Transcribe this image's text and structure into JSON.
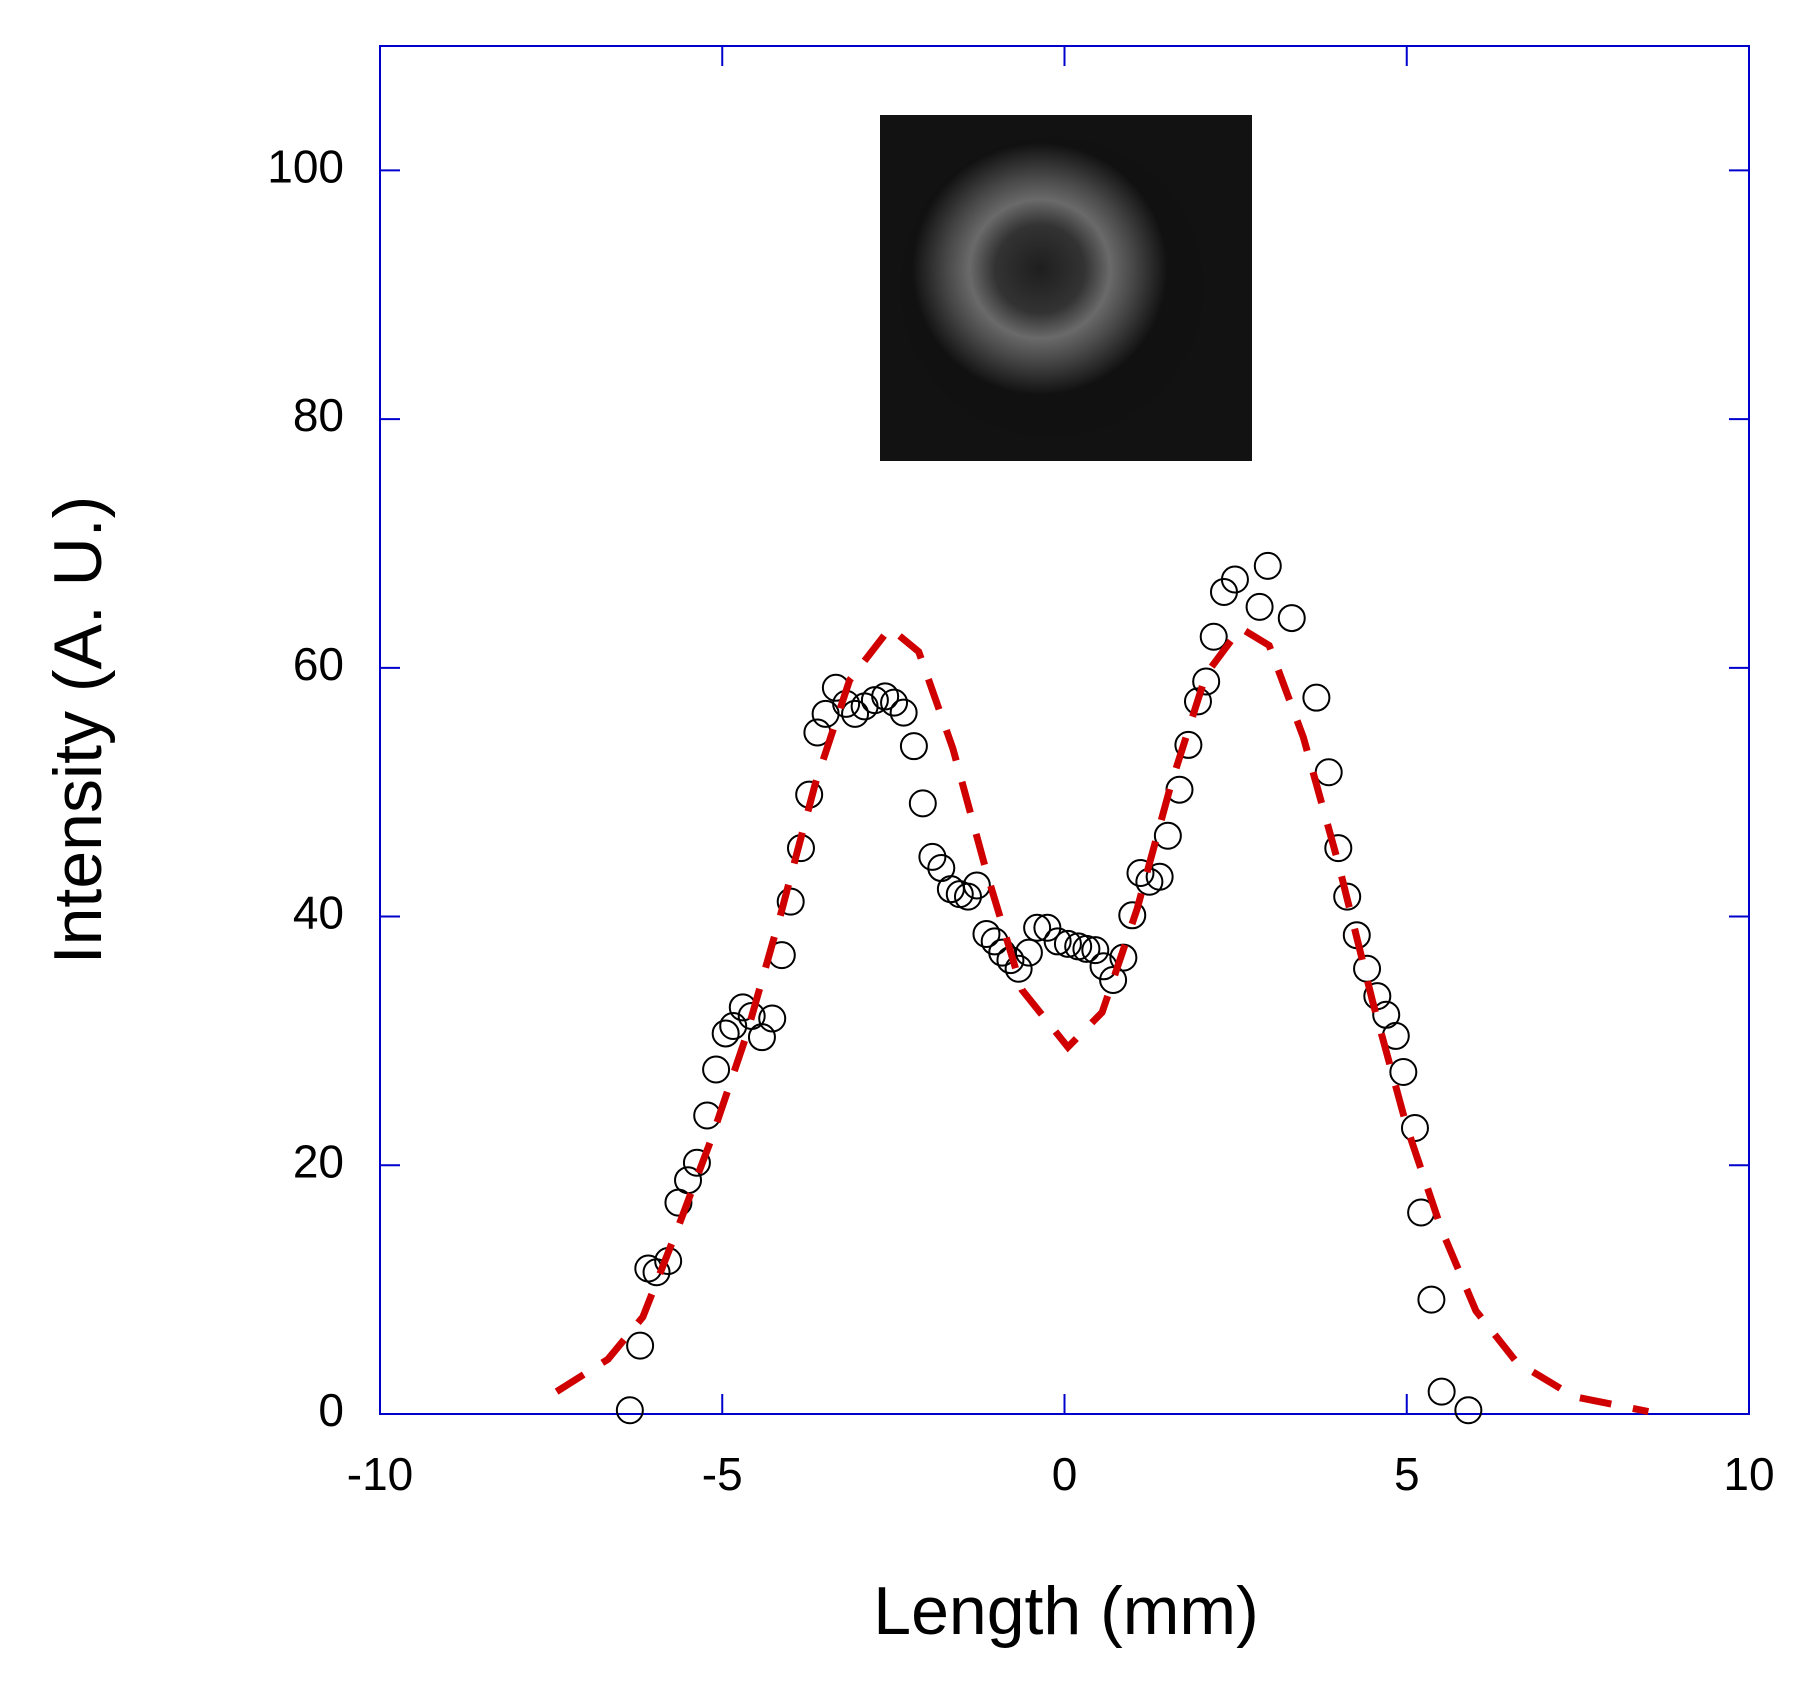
{
  "chart_data": {
    "type": "scatter",
    "x_label": "Length (mm)",
    "y_label": "Intensity (A. U.)",
    "xlim": [
      -10,
      10
    ],
    "ylim": [
      0,
      110
    ],
    "xticks": [
      -10,
      -5,
      0,
      5,
      10
    ],
    "yticks": [
      0,
      20,
      40,
      60,
      80,
      100
    ],
    "axis_color": "#0000cc",
    "series": [
      {
        "kind": "scatter",
        "marker": "open-circle",
        "color": "#000000",
        "x": [
          -6.35,
          -6.2,
          -6.08,
          -5.96,
          -5.79,
          -5.64,
          -5.5,
          -5.37,
          -5.22,
          -5.09,
          -4.95,
          -4.84,
          -4.7,
          -4.57,
          -4.42,
          -4.27,
          -4.13,
          -4.0,
          -3.85,
          -3.73,
          -3.61,
          -3.49,
          -3.34,
          -3.19,
          -3.06,
          -2.92,
          -2.77,
          -2.62,
          -2.49,
          -2.35,
          -2.2,
          -2.07,
          -1.93,
          -1.8,
          -1.66,
          -1.53,
          -1.41,
          -1.28,
          -1.14,
          -1.02,
          -0.91,
          -0.79,
          -0.67,
          -0.52,
          -0.4,
          -0.25,
          -0.1,
          0.05,
          0.2,
          0.32,
          0.45,
          0.57,
          0.71,
          0.86,
          0.99,
          1.11,
          1.24,
          1.39,
          1.51,
          1.68,
          1.81,
          1.95,
          2.07,
          2.18,
          2.33,
          2.49,
          2.85,
          2.97,
          3.32,
          3.68,
          3.86,
          4.0,
          4.13,
          4.27,
          4.42,
          4.57,
          4.7,
          4.84,
          4.95,
          5.12,
          5.21,
          5.36,
          5.51,
          5.9
        ],
        "values": [
          0.3,
          5.5,
          11.7,
          11.4,
          12.3,
          17,
          18.8,
          20.2,
          24,
          27.7,
          30.6,
          31.2,
          32.7,
          32,
          30.3,
          31.8,
          36.9,
          41.2,
          45.5,
          49.8,
          54.8,
          56.3,
          58.4,
          57.1,
          56.3,
          56.9,
          57.4,
          57.7,
          57.2,
          56.4,
          53.7,
          49.1,
          44.8,
          43.9,
          42.2,
          41.8,
          41.6,
          42.5,
          38.6,
          38,
          37.1,
          36.5,
          35.8,
          37.1,
          39.1,
          39.1,
          38,
          37.8,
          37.6,
          37.4,
          37.3,
          36,
          34.9,
          36.7,
          40.1,
          43.5,
          42.8,
          43.2,
          46.5,
          50.2,
          53.8,
          57.3,
          58.9,
          62.5,
          66.1,
          67.1,
          64.9,
          68.2,
          64,
          57.6,
          51.6,
          45.5,
          41.6,
          38.5,
          35.8,
          33.6,
          32.1,
          30.4,
          27.5,
          23,
          16.2,
          9.2,
          1.8,
          0.3
        ]
      },
      {
        "kind": "line",
        "style": "dashed",
        "color": "#d00000",
        "x": [
          -7.42,
          -6.67,
          -6.16,
          -5.66,
          -5.16,
          -4.65,
          -4.15,
          -3.64,
          -3.14,
          -2.55,
          -2.13,
          -1.63,
          -1.13,
          -0.62,
          0.05,
          0.55,
          1.06,
          1.56,
          2.07,
          2.57,
          2.99,
          3.49,
          4.0,
          4.5,
          5.0,
          5.51,
          6.01,
          6.6,
          7.44,
          8.53
        ],
        "values": [
          1.8,
          4.4,
          7.8,
          14.8,
          22.1,
          30.4,
          40.1,
          50.7,
          59,
          63.2,
          61.3,
          53.5,
          43.4,
          34.1,
          29.5,
          32.3,
          40.6,
          50.7,
          59.5,
          63.2,
          61.8,
          54.4,
          44.3,
          33.2,
          23.1,
          14.8,
          8.3,
          4.2,
          1.4,
          0.2
        ]
      }
    ]
  }
}
